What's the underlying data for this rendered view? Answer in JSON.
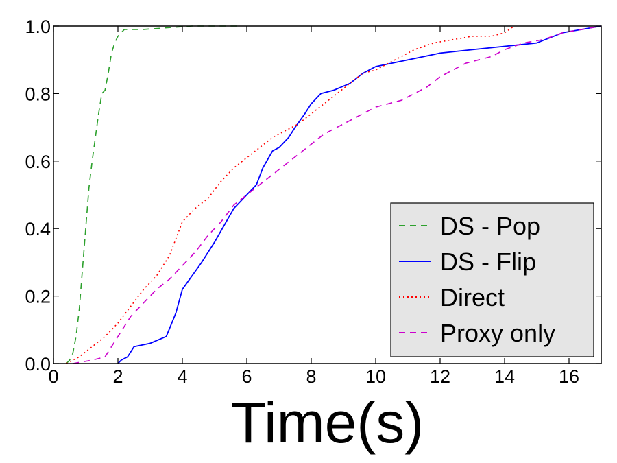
{
  "chart_data": {
    "type": "line",
    "title": "",
    "xlabel": "Time(s)",
    "ylabel": "",
    "xlim": [
      0,
      17
    ],
    "ylim": [
      0,
      1.0
    ],
    "xticks": [
      0,
      2,
      4,
      6,
      8,
      10,
      12,
      14,
      16
    ],
    "yticks": [
      0.0,
      0.2,
      0.4,
      0.6,
      0.8,
      1.0
    ],
    "xtick_labels": [
      "0",
      "2",
      "4",
      "6",
      "8",
      "10",
      "12",
      "14",
      "16"
    ],
    "ytick_labels": [
      "0.0",
      "0.2",
      "0.4",
      "0.6",
      "0.8",
      "1.0"
    ],
    "grid": false,
    "legend_position": "lower-right",
    "series": [
      {
        "name": "DS - Pop",
        "color": "#2ca02c",
        "style": "dashed",
        "points": [
          [
            0.4,
            0.0
          ],
          [
            0.5,
            0.01
          ],
          [
            0.6,
            0.03
          ],
          [
            0.7,
            0.08
          ],
          [
            0.8,
            0.16
          ],
          [
            0.9,
            0.28
          ],
          [
            1.0,
            0.4
          ],
          [
            1.1,
            0.52
          ],
          [
            1.2,
            0.6
          ],
          [
            1.3,
            0.67
          ],
          [
            1.4,
            0.74
          ],
          [
            1.5,
            0.8
          ],
          [
            1.6,
            0.81
          ],
          [
            1.7,
            0.86
          ],
          [
            1.8,
            0.92
          ],
          [
            1.9,
            0.95
          ],
          [
            2.0,
            0.97
          ],
          [
            2.2,
            0.99
          ],
          [
            2.8,
            0.99
          ],
          [
            4.3,
            1.0
          ],
          [
            5.8,
            1.0
          ]
        ]
      },
      {
        "name": "DS - Flip",
        "color": "#0000ff",
        "style": "solid",
        "points": [
          [
            2.0,
            0.0
          ],
          [
            2.1,
            0.01
          ],
          [
            2.3,
            0.02
          ],
          [
            2.5,
            0.05
          ],
          [
            3.0,
            0.06
          ],
          [
            3.5,
            0.08
          ],
          [
            3.8,
            0.15
          ],
          [
            4.0,
            0.22
          ],
          [
            4.3,
            0.26
          ],
          [
            4.6,
            0.3
          ],
          [
            5.0,
            0.36
          ],
          [
            5.3,
            0.41
          ],
          [
            5.6,
            0.46
          ],
          [
            6.0,
            0.5
          ],
          [
            6.3,
            0.53
          ],
          [
            6.5,
            0.58
          ],
          [
            6.8,
            0.63
          ],
          [
            7.0,
            0.64
          ],
          [
            7.3,
            0.67
          ],
          [
            7.5,
            0.7
          ],
          [
            7.8,
            0.74
          ],
          [
            8.0,
            0.77
          ],
          [
            8.3,
            0.8
          ],
          [
            8.7,
            0.81
          ],
          [
            9.2,
            0.83
          ],
          [
            9.6,
            0.86
          ],
          [
            10.0,
            0.88
          ],
          [
            10.5,
            0.89
          ],
          [
            11.0,
            0.9
          ],
          [
            12.0,
            0.92
          ],
          [
            13.0,
            0.93
          ],
          [
            14.0,
            0.94
          ],
          [
            15.0,
            0.95
          ],
          [
            15.8,
            0.98
          ],
          [
            17.0,
            1.0
          ]
        ]
      },
      {
        "name": "Direct",
        "color": "#ff0000",
        "style": "dotted",
        "points": [
          [
            0.4,
            0.0
          ],
          [
            0.8,
            0.02
          ],
          [
            1.2,
            0.05
          ],
          [
            1.6,
            0.08
          ],
          [
            2.0,
            0.12
          ],
          [
            2.4,
            0.17
          ],
          [
            2.8,
            0.22
          ],
          [
            3.2,
            0.26
          ],
          [
            3.6,
            0.32
          ],
          [
            4.0,
            0.42
          ],
          [
            4.4,
            0.46
          ],
          [
            4.8,
            0.49
          ],
          [
            5.2,
            0.54
          ],
          [
            5.6,
            0.58
          ],
          [
            6.0,
            0.61
          ],
          [
            6.4,
            0.64
          ],
          [
            6.8,
            0.67
          ],
          [
            7.2,
            0.69
          ],
          [
            7.6,
            0.71
          ],
          [
            8.0,
            0.74
          ],
          [
            8.4,
            0.77
          ],
          [
            8.8,
            0.8
          ],
          [
            9.2,
            0.83
          ],
          [
            9.6,
            0.86
          ],
          [
            10.0,
            0.87
          ],
          [
            10.4,
            0.89
          ],
          [
            10.8,
            0.91
          ],
          [
            11.2,
            0.93
          ],
          [
            11.8,
            0.95
          ],
          [
            12.4,
            0.96
          ],
          [
            13.0,
            0.97
          ],
          [
            13.6,
            0.97
          ],
          [
            14.0,
            0.98
          ],
          [
            14.3,
            1.0
          ]
        ]
      },
      {
        "name": "Proxy only",
        "color": "#cc00cc",
        "style": "dashed",
        "points": [
          [
            0.6,
            0.0
          ],
          [
            1.2,
            0.01
          ],
          [
            1.6,
            0.02
          ],
          [
            2.0,
            0.08
          ],
          [
            2.4,
            0.14
          ],
          [
            2.8,
            0.18
          ],
          [
            3.2,
            0.22
          ],
          [
            3.6,
            0.25
          ],
          [
            4.0,
            0.29
          ],
          [
            4.4,
            0.33
          ],
          [
            4.8,
            0.38
          ],
          [
            5.2,
            0.42
          ],
          [
            5.6,
            0.47
          ],
          [
            6.0,
            0.5
          ],
          [
            6.4,
            0.53
          ],
          [
            6.8,
            0.56
          ],
          [
            7.2,
            0.59
          ],
          [
            7.6,
            0.62
          ],
          [
            8.0,
            0.65
          ],
          [
            8.4,
            0.68
          ],
          [
            8.8,
            0.7
          ],
          [
            9.2,
            0.72
          ],
          [
            9.6,
            0.74
          ],
          [
            10.0,
            0.76
          ],
          [
            10.4,
            0.77
          ],
          [
            10.8,
            0.78
          ],
          [
            11.2,
            0.8
          ],
          [
            11.6,
            0.82
          ],
          [
            12.0,
            0.85
          ],
          [
            12.4,
            0.87
          ],
          [
            12.8,
            0.89
          ],
          [
            13.2,
            0.9
          ],
          [
            13.6,
            0.91
          ],
          [
            14.0,
            0.93
          ],
          [
            14.6,
            0.95
          ],
          [
            15.2,
            0.96
          ],
          [
            15.8,
            0.98
          ],
          [
            16.4,
            0.99
          ],
          [
            17.0,
            1.0
          ]
        ]
      }
    ]
  }
}
